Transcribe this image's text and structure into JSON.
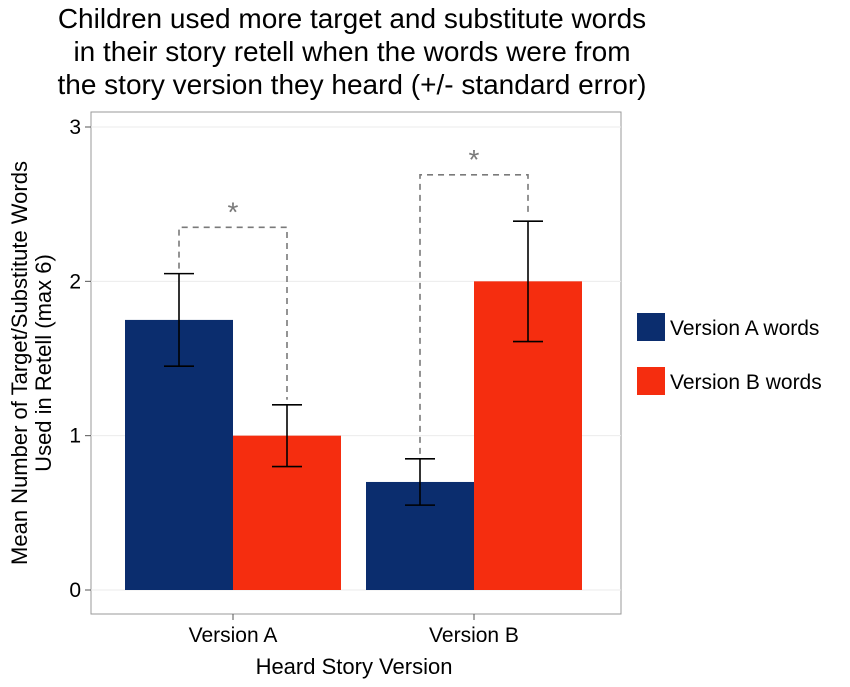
{
  "chart_data": {
    "type": "bar",
    "title_lines": [
      "Children used more target and substitute words",
      "in their story retell when the words were from",
      "the story version they heard (+/- standard error)"
    ],
    "xlabel": "Heard Story Version",
    "ylabel_lines": [
      "Mean Number of Target/Substitute Words",
      "Used in Retell (max 6)"
    ],
    "categories": [
      "Version A",
      "Version B"
    ],
    "ylim": [
      0,
      3
    ],
    "yticks": [
      0,
      1,
      2,
      3
    ],
    "grid": true,
    "legend_position": "right",
    "series": [
      {
        "name": "Version A words",
        "color": "#0b2d6e",
        "values": [
          1.75,
          0.7
        ],
        "err_low": [
          1.45,
          0.55
        ],
        "err_high": [
          2.05,
          0.85
        ]
      },
      {
        "name": "Version B words",
        "color": "#f52d0f",
        "values": [
          1.0,
          2.0
        ],
        "err_low": [
          0.8,
          1.61
        ],
        "err_high": [
          1.2,
          2.39
        ]
      }
    ],
    "annotations": [
      {
        "category": "Version A",
        "text": "*",
        "bracket_y": 2.35
      },
      {
        "category": "Version B",
        "text": "*",
        "bracket_y": 2.69
      }
    ]
  }
}
